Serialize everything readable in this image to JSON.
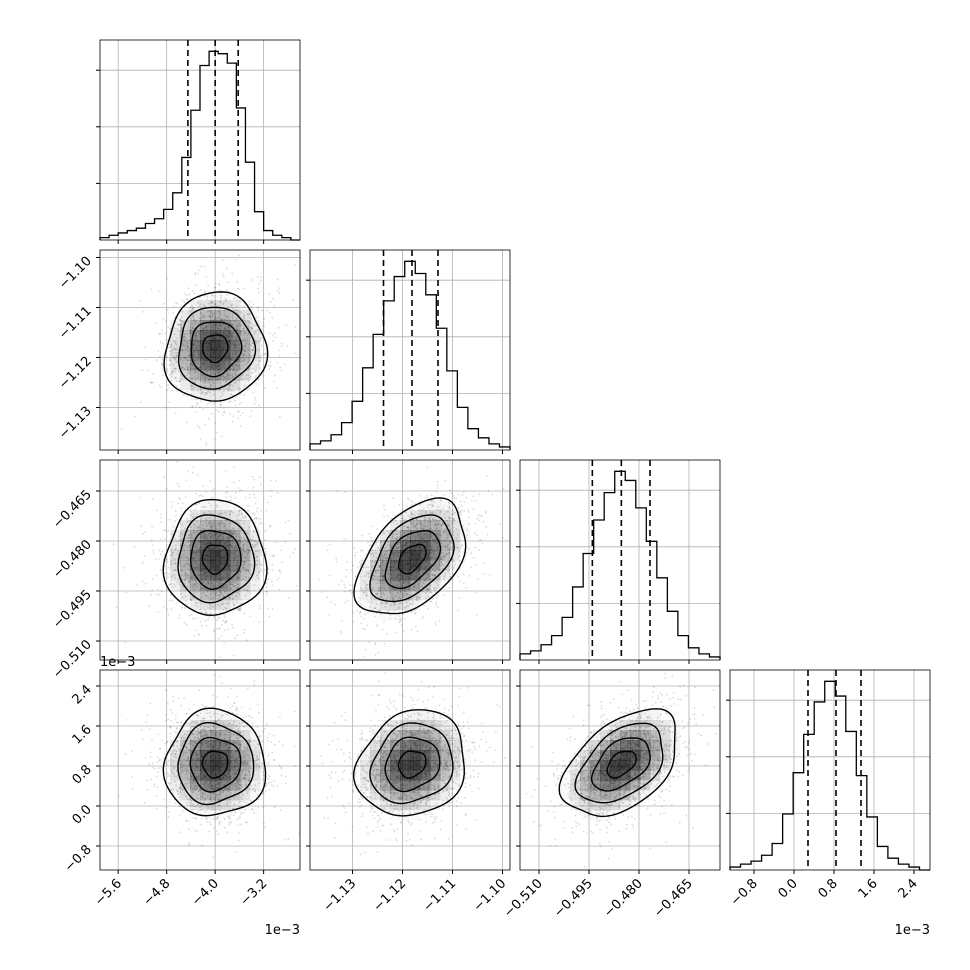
{
  "chart_data": {
    "type": "corner",
    "title": "",
    "grid": true,
    "parameters": [
      {
        "index": 0,
        "range": [
          -5.9,
          -2.6
        ],
        "scale": "1e-3",
        "ticks": [
          -5.6,
          -4.8,
          -4.0,
          -3.2
        ],
        "tick_labels": [
          "−5.6",
          "−4.8",
          "−4.0",
          "−3.2"
        ],
        "quantiles": [
          -4.45,
          -4.0,
          -3.62
        ]
      },
      {
        "index": 1,
        "range": [
          -1.1385,
          -1.0985
        ],
        "scale": "",
        "ticks": [
          -1.13,
          -1.12,
          -1.11,
          -1.1
        ],
        "tick_labels": [
          "−1.13",
          "−1.12",
          "−1.11",
          "−1.10"
        ],
        "quantiles": [
          -1.1238,
          -1.1181,
          -1.1129
        ]
      },
      {
        "index": 2,
        "range": [
          -0.5157,
          -0.4557
        ],
        "scale": "",
        "ticks": [
          -0.51,
          -0.495,
          -0.48,
          -0.465
        ],
        "tick_labels": [
          "−0.510",
          "−0.495",
          "−0.480",
          "−0.465"
        ],
        "quantiles": [
          -0.494,
          -0.4853,
          -0.4767
        ]
      },
      {
        "index": 3,
        "range": [
          -1.28,
          2.72
        ],
        "scale": "1e-3",
        "ticks": [
          -0.8,
          0.0,
          0.8,
          1.6,
          2.4
        ],
        "tick_labels": [
          "−0.8",
          "0.0",
          "0.8",
          "1.6",
          "2.4"
        ],
        "quantiles": [
          0.28,
          0.84,
          1.34
        ]
      }
    ],
    "offset_labels": [
      {
        "axis": "x",
        "param": 0,
        "text": "1e−3"
      },
      {
        "axis": "x",
        "param": 3,
        "text": "1e−3"
      },
      {
        "axis": "y",
        "param": 3,
        "text": "1e−3"
      }
    ],
    "histograms": [
      {
        "param": 0,
        "counts": [
          1,
          2,
          3,
          4,
          5,
          7,
          9,
          13,
          20,
          35,
          55,
          74,
          80,
          79,
          75,
          56,
          33,
          12,
          4,
          2,
          1,
          0
        ]
      },
      {
        "param": 1,
        "counts": [
          2,
          3,
          5,
          9,
          16,
          27,
          38,
          49,
          57,
          62,
          58,
          51,
          40,
          26,
          14,
          7,
          4,
          2,
          1
        ]
      },
      {
        "param": 2,
        "counts": [
          2,
          3,
          5,
          8,
          14,
          24,
          35,
          46,
          55,
          62,
          59,
          50,
          39,
          27,
          16,
          8,
          4,
          2,
          1
        ]
      },
      {
        "param": 3,
        "counts": [
          1,
          2,
          3,
          5,
          9,
          19,
          33,
          46,
          57,
          64,
          59,
          47,
          32,
          18,
          8,
          4,
          2,
          1,
          0
        ]
      }
    ],
    "correlations": [
      {
        "x": 0,
        "y": 1,
        "rho": 0.05
      },
      {
        "x": 0,
        "y": 2,
        "rho": 0.02
      },
      {
        "x": 1,
        "y": 2,
        "rho": 0.45
      },
      {
        "x": 0,
        "y": 3,
        "rho": 0.02
      },
      {
        "x": 1,
        "y": 3,
        "rho": 0.15
      },
      {
        "x": 2,
        "y": 3,
        "rho": 0.45
      }
    ],
    "contour_levels": [
      0.118,
      0.393,
      0.675,
      0.865
    ],
    "colors": {
      "line": "#000000",
      "points": "#000000",
      "grid": "#b0b0b0",
      "density_max": "#000000"
    }
  }
}
